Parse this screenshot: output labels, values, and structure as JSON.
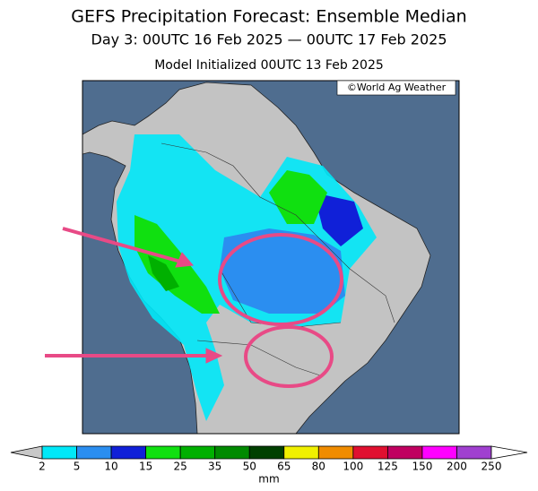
{
  "header": {
    "title": "GEFS Precipitation Forecast: Ensemble Median",
    "period": "Day 3: 00UTC 16 Feb 2025 — 00UTC 17 Feb 2025",
    "initialized": "Model Initialized 00UTC 13 Feb 2025"
  },
  "map": {
    "credit": "©World Ag Weather"
  },
  "colorbar": {
    "colors": [
      "#c8c8c8",
      "#00e8f8",
      "#2b8ef0",
      "#1020d8",
      "#10e010",
      "#00b000",
      "#008a00",
      "#004000",
      "#f0f000",
      "#f08c00",
      "#e01030",
      "#c00060",
      "#ff00ff",
      "#a040d0",
      "#ffffff"
    ],
    "labels": [
      "2",
      "5",
      "10",
      "15",
      "25",
      "35",
      "50",
      "65",
      "80",
      "100",
      "125",
      "150",
      "200",
      "250"
    ],
    "unit": "mm"
  }
}
